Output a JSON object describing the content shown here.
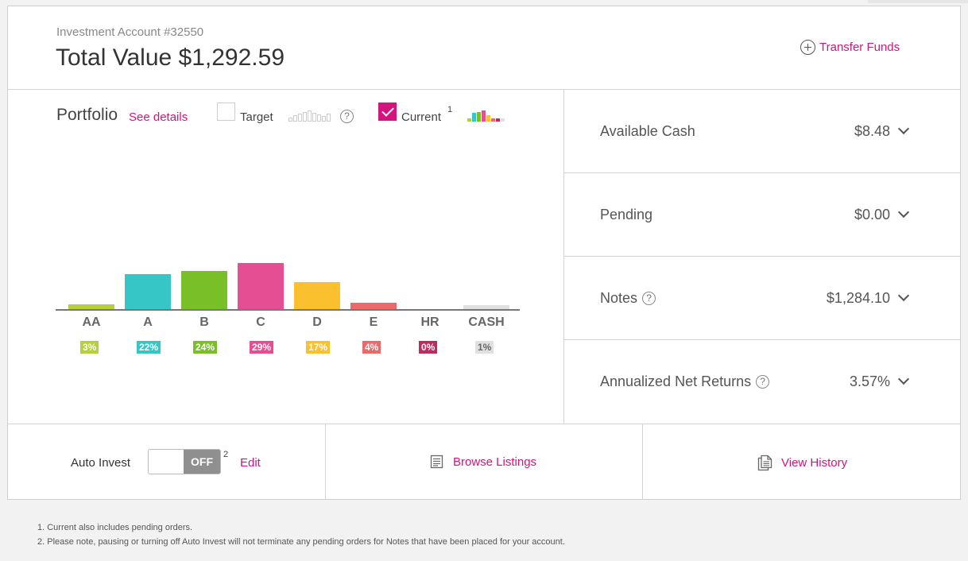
{
  "header": {
    "account_label": "Investment Account #32550",
    "total_label": "Total Value $1,292.59",
    "transfer_label": "Transfer Funds"
  },
  "portfolio": {
    "title": "Portfolio",
    "details_link": "See details",
    "target_label": "Target",
    "target_checked": false,
    "current_label": "Current",
    "current_footnote": "1",
    "current_checked": true,
    "help_glyph": "?"
  },
  "chart_data": {
    "type": "bar",
    "categories": [
      "AA",
      "A",
      "B",
      "C",
      "D",
      "E",
      "HR",
      "CASH"
    ],
    "values": [
      3,
      22,
      24,
      29,
      17,
      4,
      0,
      1
    ],
    "value_labels": [
      "3%",
      "22%",
      "24%",
      "29%",
      "17%",
      "4%",
      "0%",
      "1%"
    ],
    "colors": [
      "#b5cf3d",
      "#36c6c6",
      "#79bf28",
      "#e54e92",
      "#fbc02d",
      "#ea6a6a",
      "#be2b5e",
      "#e0e0e0"
    ],
    "label_text_colors": [
      "#ffffff",
      "#ffffff",
      "#ffffff",
      "#ffffff",
      "#ffffff",
      "#ffffff",
      "#ffffff",
      "#666666"
    ],
    "ylim": [
      0,
      29
    ]
  },
  "summary": {
    "rows": [
      {
        "label": "Available Cash",
        "value": "$8.48",
        "help": false
      },
      {
        "label": "Pending",
        "value": "$0.00",
        "help": false
      },
      {
        "label": "Notes",
        "value": "$1,284.10",
        "help": true
      },
      {
        "label": "Annualized Net Returns",
        "value": "3.57%",
        "help": true
      }
    ]
  },
  "footer": {
    "auto_invest_label": "Auto Invest",
    "toggle_state": "OFF",
    "auto_invest_footnote": "2",
    "edit_label": "Edit",
    "browse_label": "Browse Listings",
    "history_label": "View History"
  },
  "footnotes": [
    "1. Current also includes pending orders.",
    "2. Please note, pausing or turning off Auto Invest will not terminate any pending orders for Notes that have been placed for your account."
  ],
  "colors": {
    "accent": "#d4147c"
  }
}
